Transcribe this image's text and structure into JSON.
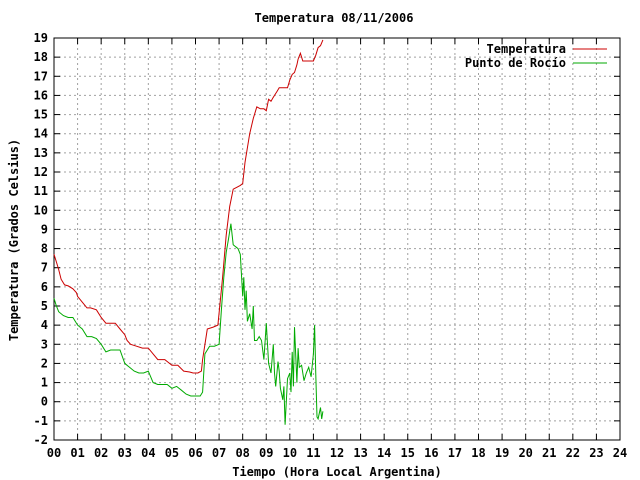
{
  "chart_data": {
    "type": "line",
    "title": "Temperatura 08/11/2006",
    "xlabel": "Tiempo (Hora Local Argentina)",
    "ylabel": "Temperatura (Grados Celsius)",
    "xlim": [
      0,
      24
    ],
    "ylim": [
      -2,
      19
    ],
    "x_ticks": [
      "00",
      "01",
      "02",
      "03",
      "04",
      "05",
      "06",
      "07",
      "08",
      "09",
      "10",
      "11",
      "12",
      "13",
      "14",
      "15",
      "16",
      "17",
      "18",
      "19",
      "20",
      "21",
      "22",
      "23",
      "24"
    ],
    "y_ticks": [
      -2,
      -1,
      0,
      1,
      2,
      3,
      4,
      5,
      6,
      7,
      8,
      9,
      10,
      11,
      12,
      13,
      14,
      15,
      16,
      17,
      18,
      19
    ],
    "grid": true,
    "legend_position": "top-right",
    "series": [
      {
        "name": "Temperatura",
        "color": "#cc0000",
        "x": [
          0.0,
          0.1,
          0.2,
          0.3,
          0.45,
          0.6,
          0.8,
          0.95,
          1.0,
          1.2,
          1.4,
          1.55,
          1.8,
          2.0,
          2.2,
          2.4,
          2.6,
          2.8,
          3.0,
          3.1,
          3.25,
          3.5,
          3.75,
          4.0,
          4.2,
          4.4,
          4.55,
          4.7,
          5.0,
          5.15,
          5.25,
          5.5,
          5.75,
          5.9,
          6.1,
          6.25,
          6.3,
          6.5,
          6.75,
          6.95,
          7.15,
          7.3,
          7.45,
          7.6,
          7.75,
          7.9,
          8.0,
          8.1,
          8.3,
          8.45,
          8.6,
          8.75,
          8.9,
          9.0,
          9.1,
          9.2,
          9.3,
          9.35,
          9.45,
          9.55,
          9.75,
          9.9,
          10.0,
          10.1,
          10.2,
          10.3,
          10.35,
          10.45,
          10.55,
          10.7,
          10.85,
          11.0,
          11.1,
          11.2,
          11.3,
          11.4
        ],
        "values": [
          7.7,
          7.3,
          6.9,
          6.4,
          6.1,
          6.05,
          5.9,
          5.7,
          5.5,
          5.2,
          4.9,
          4.9,
          4.8,
          4.4,
          4.1,
          4.1,
          4.1,
          3.8,
          3.5,
          3.2,
          3.0,
          2.9,
          2.8,
          2.8,
          2.5,
          2.2,
          2.2,
          2.2,
          1.9,
          1.9,
          1.9,
          1.6,
          1.55,
          1.5,
          1.5,
          1.6,
          2.2,
          3.8,
          3.9,
          4.0,
          6.5,
          8.7,
          10.2,
          11.1,
          11.2,
          11.3,
          11.4,
          12.5,
          14.0,
          14.8,
          15.4,
          15.3,
          15.3,
          15.2,
          15.8,
          15.7,
          15.9,
          16.0,
          16.2,
          16.4,
          16.4,
          16.4,
          16.8,
          17.1,
          17.2,
          17.6,
          17.9,
          18.2,
          17.8,
          17.8,
          17.8,
          17.8,
          18.1,
          18.5,
          18.6,
          18.9
        ]
      },
      {
        "name": "Punto de Rocío",
        "color": "#00aa00",
        "x": [
          0.0,
          0.1,
          0.2,
          0.4,
          0.6,
          0.8,
          1.0,
          1.2,
          1.4,
          1.6,
          1.8,
          2.0,
          2.2,
          2.4,
          2.6,
          2.8,
          3.0,
          3.2,
          3.4,
          3.6,
          3.8,
          4.0,
          4.2,
          4.4,
          4.6,
          4.8,
          5.0,
          5.2,
          5.4,
          5.6,
          5.8,
          6.0,
          6.2,
          6.3,
          6.4,
          6.6,
          6.8,
          7.0,
          7.1,
          7.2,
          7.3,
          7.4,
          7.5,
          7.6,
          7.7,
          7.8,
          7.9,
          8.0,
          8.05,
          8.1,
          8.15,
          8.2,
          8.3,
          8.4,
          8.45,
          8.5,
          8.6,
          8.7,
          8.8,
          8.9,
          9.0,
          9.1,
          9.2,
          9.3,
          9.35,
          9.4,
          9.5,
          9.55,
          9.6,
          9.7,
          9.75,
          9.8,
          9.9,
          10.0,
          10.05,
          10.1,
          10.15,
          10.2,
          10.3,
          10.35,
          10.4,
          10.5,
          10.6,
          10.7,
          10.8,
          10.9,
          11.0,
          11.05,
          11.1,
          11.15,
          11.2,
          11.3,
          11.35,
          11.4
        ],
        "values": [
          5.4,
          5.0,
          4.7,
          4.5,
          4.4,
          4.4,
          4.0,
          3.8,
          3.4,
          3.4,
          3.3,
          3.0,
          2.6,
          2.7,
          2.7,
          2.7,
          2.0,
          1.8,
          1.6,
          1.5,
          1.5,
          1.6,
          1.0,
          0.9,
          0.9,
          0.9,
          0.7,
          0.8,
          0.6,
          0.4,
          0.3,
          0.3,
          0.3,
          0.5,
          2.5,
          2.9,
          2.9,
          3.0,
          4.8,
          6.5,
          7.8,
          8.5,
          9.3,
          8.2,
          8.1,
          8.0,
          7.7,
          5.5,
          6.5,
          4.8,
          5.8,
          4.2,
          4.6,
          3.8,
          5.0,
          3.2,
          3.2,
          3.4,
          3.2,
          2.2,
          4.1,
          2.0,
          1.5,
          3.0,
          1.5,
          0.8,
          2.1,
          1.6,
          0.7,
          0.1,
          0.8,
          -1.2,
          1.2,
          1.5,
          0.5,
          2.6,
          0.8,
          3.9,
          1.0,
          2.8,
          1.8,
          1.9,
          1.1,
          1.5,
          1.8,
          1.3,
          2.5,
          4.0,
          1.4,
          -0.8,
          -0.9,
          -0.3,
          -0.9,
          -0.5
        ]
      }
    ]
  }
}
